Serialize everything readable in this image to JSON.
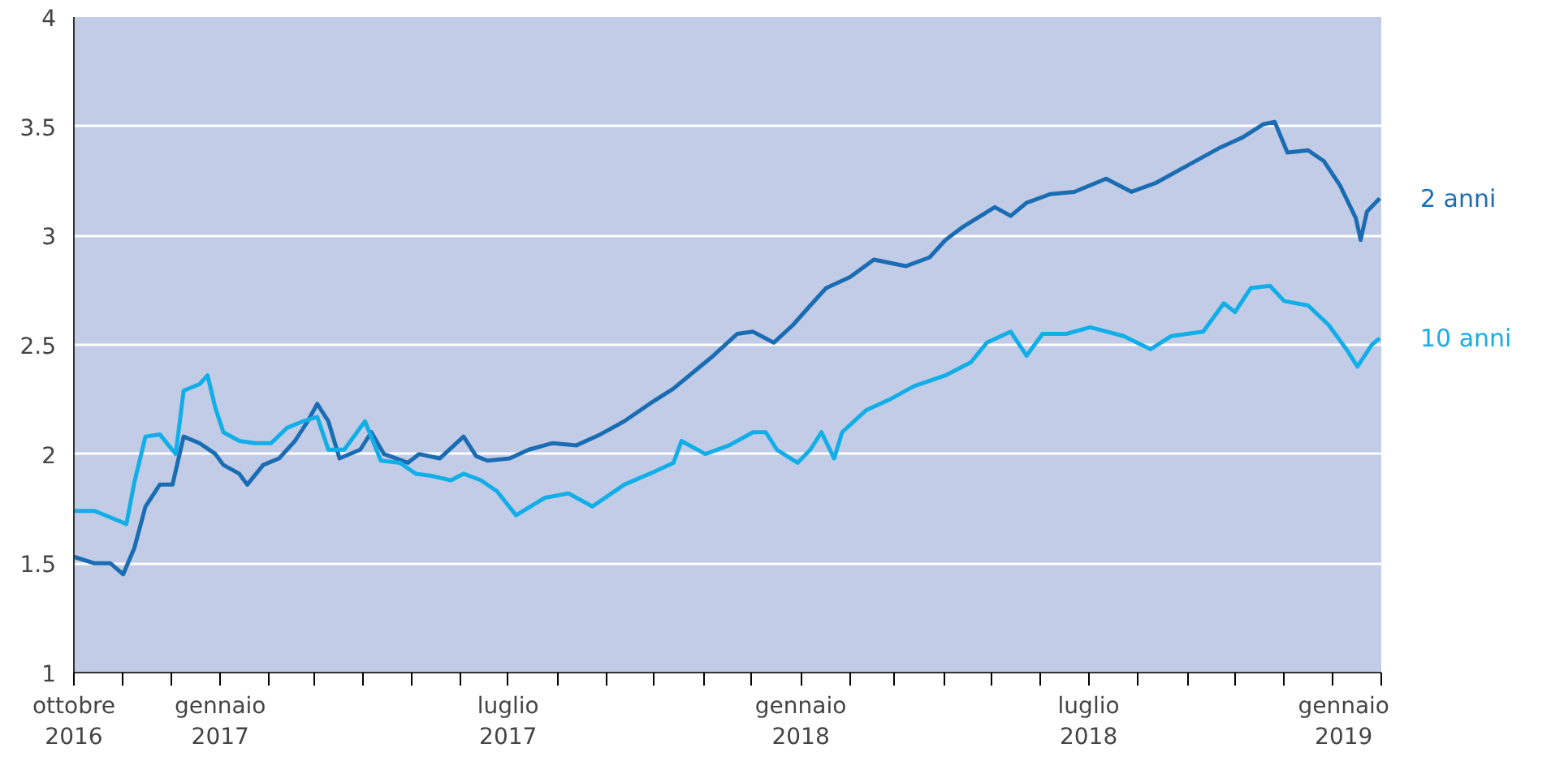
{
  "chart_data": {
    "type": "line",
    "xlim": [
      "2016-10-01",
      "2019-01-01"
    ],
    "ylim": [
      1,
      4
    ],
    "yticks": [
      1,
      1.5,
      2,
      2.5,
      3,
      3.5,
      4
    ],
    "xticks": [
      {
        "value": "2016-10-01",
        "label": "ottobre\n2016"
      },
      {
        "value": "2016-11-01",
        "label": null
      },
      {
        "value": "2016-12-01",
        "label": null
      },
      {
        "value": "2017-01-01",
        "label": "gennaio\n2017"
      },
      {
        "value": "2017-02-01",
        "label": null
      },
      {
        "value": "2017-03-01",
        "label": null
      },
      {
        "value": "2017-04-01",
        "label": null
      },
      {
        "value": "2017-05-01",
        "label": null
      },
      {
        "value": "2017-06-01",
        "label": null
      },
      {
        "value": "2017-07-01",
        "label": "luglio\n2017"
      },
      {
        "value": "2017-08-01",
        "label": null
      },
      {
        "value": "2017-09-01",
        "label": null
      },
      {
        "value": "2017-10-01",
        "label": null
      },
      {
        "value": "2017-11-01",
        "label": null
      },
      {
        "value": "2017-12-01",
        "label": null
      },
      {
        "value": "2018-01-01",
        "label": "gennaio\n2018"
      },
      {
        "value": "2018-02-01",
        "label": null
      },
      {
        "value": "2018-03-01",
        "label": null
      },
      {
        "value": "2018-04-01",
        "label": null
      },
      {
        "value": "2018-05-01",
        "label": null
      },
      {
        "value": "2018-06-01",
        "label": null
      },
      {
        "value": "2018-07-01",
        "label": "luglio\n2018"
      },
      {
        "value": "2018-08-01",
        "label": null
      },
      {
        "value": "2018-09-01",
        "label": null
      },
      {
        "value": "2018-10-01",
        "label": null
      },
      {
        "value": "2018-11-01",
        "label": null
      },
      {
        "value": "2018-12-01",
        "label": null
      },
      {
        "value": "2019-01-01",
        "label": "gennaio\n2019"
      }
    ],
    "grid": "y",
    "series": [
      {
        "name": "2 anni",
        "color": "#1a6db3",
        "x": [
          "2016-10-01",
          "2016-10-14",
          "2016-10-24",
          "2016-11-01",
          "2016-11-08",
          "2016-11-15",
          "2016-11-24",
          "2016-12-02",
          "2016-12-09",
          "2016-12-19",
          "2016-12-29",
          "2017-01-03",
          "2017-01-13",
          "2017-01-18",
          "2017-01-28",
          "2017-02-07",
          "2017-02-17",
          "2017-02-25",
          "2017-03-03",
          "2017-03-10",
          "2017-03-17",
          "2017-03-30",
          "2017-04-06",
          "2017-04-14",
          "2017-04-29",
          "2017-05-06",
          "2017-05-19",
          "2017-06-03",
          "2017-06-11",
          "2017-06-18",
          "2017-07-02",
          "2017-07-14",
          "2017-07-29",
          "2017-08-13",
          "2017-08-28",
          "2017-09-12",
          "2017-09-28",
          "2017-10-13",
          "2017-10-23",
          "2017-11-07",
          "2017-11-22",
          "2017-12-02",
          "2017-12-15",
          "2017-12-27",
          "2018-01-07",
          "2018-01-17",
          "2018-02-01",
          "2018-02-16",
          "2018-03-08",
          "2018-03-23",
          "2018-04-02",
          "2018-04-13",
          "2018-05-03",
          "2018-05-13",
          "2018-05-23",
          "2018-06-07",
          "2018-06-22",
          "2018-07-12",
          "2018-07-28",
          "2018-08-12",
          "2018-09-01",
          "2018-09-21",
          "2018-10-06",
          "2018-10-19",
          "2018-10-26",
          "2018-11-03",
          "2018-11-16",
          "2018-11-26",
          "2018-12-06",
          "2018-12-16",
          "2018-12-19",
          "2018-12-23",
          "2018-12-31"
        ],
        "values": [
          1.53,
          1.5,
          1.5,
          1.45,
          1.57,
          1.76,
          1.86,
          1.86,
          2.08,
          2.05,
          2.0,
          1.95,
          1.91,
          1.86,
          1.95,
          1.98,
          2.06,
          2.15,
          2.23,
          2.15,
          1.98,
          2.02,
          2.1,
          2.0,
          1.96,
          2.0,
          1.98,
          2.08,
          1.99,
          1.97,
          1.98,
          2.02,
          2.05,
          2.04,
          2.09,
          2.15,
          2.23,
          2.3,
          2.36,
          2.45,
          2.55,
          2.56,
          2.51,
          2.59,
          2.68,
          2.76,
          2.81,
          2.89,
          2.86,
          2.9,
          2.98,
          3.04,
          3.13,
          3.09,
          3.15,
          3.19,
          3.2,
          3.26,
          3.2,
          3.24,
          3.32,
          3.4,
          3.45,
          3.51,
          3.52,
          3.38,
          3.39,
          3.34,
          3.23,
          3.08,
          2.98,
          3.11,
          3.17
        ]
      },
      {
        "name": "10 anni",
        "color": "#12aee8",
        "x": [
          "2016-10-01",
          "2016-10-14",
          "2016-10-24",
          "2016-11-03",
          "2016-11-08",
          "2016-11-15",
          "2016-11-24",
          "2016-12-04",
          "2016-12-09",
          "2016-12-19",
          "2016-12-24",
          "2016-12-29",
          "2017-01-03",
          "2017-01-13",
          "2017-01-23",
          "2017-02-02",
          "2017-02-12",
          "2017-02-22",
          "2017-03-03",
          "2017-03-10",
          "2017-03-20",
          "2017-04-02",
          "2017-04-12",
          "2017-04-24",
          "2017-05-04",
          "2017-05-14",
          "2017-05-26",
          "2017-06-03",
          "2017-06-14",
          "2017-06-24",
          "2017-07-06",
          "2017-07-24",
          "2017-08-08",
          "2017-08-23",
          "2017-09-12",
          "2017-09-28",
          "2017-10-13",
          "2017-10-18",
          "2017-11-02",
          "2017-11-17",
          "2017-12-02",
          "2017-12-10",
          "2017-12-17",
          "2017-12-30",
          "2018-01-07",
          "2018-01-14",
          "2018-01-22",
          "2018-01-27",
          "2018-02-11",
          "2018-02-26",
          "2018-03-13",
          "2018-04-02",
          "2018-04-18",
          "2018-04-28",
          "2018-05-13",
          "2018-05-23",
          "2018-06-02",
          "2018-06-17",
          "2018-07-02",
          "2018-07-23",
          "2018-08-09",
          "2018-08-22",
          "2018-09-11",
          "2018-09-24",
          "2018-10-01",
          "2018-10-11",
          "2018-10-23",
          "2018-11-01",
          "2018-11-16",
          "2018-11-29",
          "2018-12-11",
          "2018-12-17",
          "2018-12-26",
          "2018-12-31"
        ],
        "values": [
          1.74,
          1.74,
          1.71,
          1.68,
          1.87,
          2.08,
          2.09,
          2.0,
          2.29,
          2.32,
          2.36,
          2.21,
          2.1,
          2.06,
          2.05,
          2.05,
          2.12,
          2.15,
          2.17,
          2.02,
          2.02,
          2.15,
          1.97,
          1.96,
          1.91,
          1.9,
          1.88,
          1.91,
          1.88,
          1.83,
          1.72,
          1.8,
          1.82,
          1.76,
          1.86,
          1.91,
          1.96,
          2.06,
          2.0,
          2.04,
          2.1,
          2.1,
          2.02,
          1.96,
          2.02,
          2.1,
          1.98,
          2.1,
          2.2,
          2.25,
          2.31,
          2.36,
          2.42,
          2.51,
          2.56,
          2.45,
          2.55,
          2.55,
          2.58,
          2.54,
          2.48,
          2.54,
          2.56,
          2.69,
          2.65,
          2.76,
          2.77,
          2.7,
          2.68,
          2.59,
          2.47,
          2.4,
          2.5,
          2.53
        ]
      }
    ]
  }
}
